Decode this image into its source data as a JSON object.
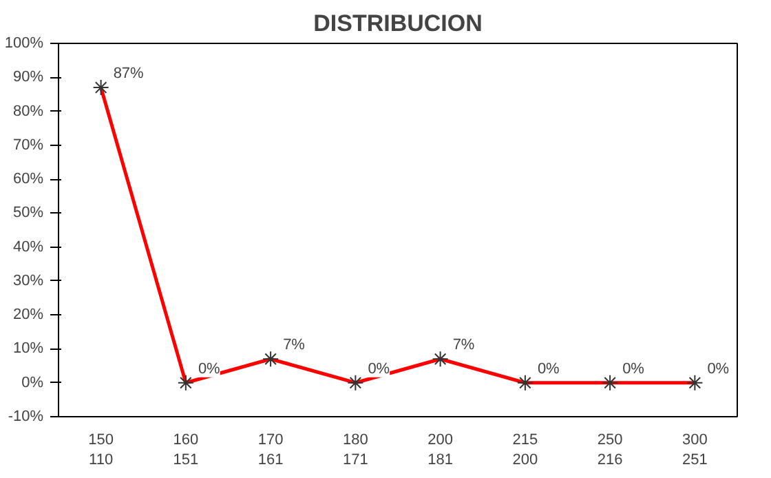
{
  "chart_data": {
    "type": "line",
    "title": "DISTRIBUCION",
    "categories": [
      "150\n110",
      "160\n151",
      "170\n161",
      "180\n171",
      "200\n181",
      "215\n200",
      "250\n216",
      "300\n251"
    ],
    "series": [
      {
        "color": "#ff0000",
        "values": [
          87,
          0,
          7,
          0,
          7,
          0,
          0,
          0
        ]
      }
    ],
    "value_labels": [
      "87%",
      "0%",
      "7%",
      "0%",
      "7%",
      "0%",
      "0%",
      "0%"
    ],
    "marker": "cross",
    "line_style": "solid",
    "grid": false,
    "ylim": [
      -10,
      100
    ],
    "yticks": [
      {
        "value": -10,
        "label": "-10%"
      },
      {
        "value": 0,
        "label": "0%"
      },
      {
        "value": 10,
        "label": "10%"
      },
      {
        "value": 20,
        "label": "20%"
      },
      {
        "value": 30,
        "label": "30%"
      },
      {
        "value": 40,
        "label": "40%"
      },
      {
        "value": 50,
        "label": "50%"
      },
      {
        "value": 60,
        "label": "60%"
      },
      {
        "value": 70,
        "label": "70%"
      },
      {
        "value": 80,
        "label": "80%"
      },
      {
        "value": 90,
        "label": "90%"
      },
      {
        "value": 100,
        "label": "100%"
      }
    ]
  }
}
